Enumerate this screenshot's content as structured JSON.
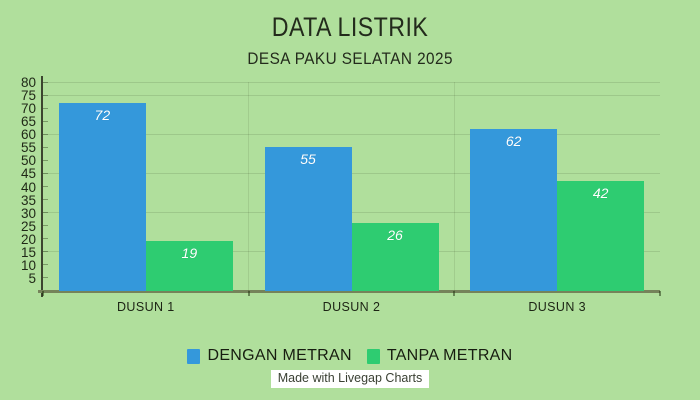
{
  "page": {
    "background": "#b0df9c",
    "footer": {
      "label": "Made with Livegap Charts",
      "bg": "#ffffff"
    }
  },
  "chart_data": {
    "type": "bar",
    "title": "DATA LISTRIK",
    "subtitle": "DESA PAKU SELATAN 2025",
    "xlabel": "",
    "ylabel": "",
    "categories": [
      "DUSUN 1",
      "DUSUN 2",
      "DUSUN 3"
    ],
    "series": [
      {
        "name": "DENGAN METRAN",
        "color": "#3498db",
        "values": [
          72,
          55,
          62
        ]
      },
      {
        "name": "TANPA METRAN",
        "color": "#2ecc71",
        "values": [
          19,
          26,
          42
        ]
      }
    ],
    "ylim": [
      0,
      80
    ],
    "y_ticks": [
      5,
      10,
      15,
      20,
      25,
      30,
      35,
      40,
      45,
      50,
      55,
      60,
      65,
      70,
      75,
      80
    ],
    "gridline_values": [
      15,
      30,
      45,
      60,
      75,
      80
    ],
    "grid": true,
    "legend_position": "bottom",
    "value_label_style": "white-italic-inside-top",
    "value_label_color": "#ffffff"
  }
}
